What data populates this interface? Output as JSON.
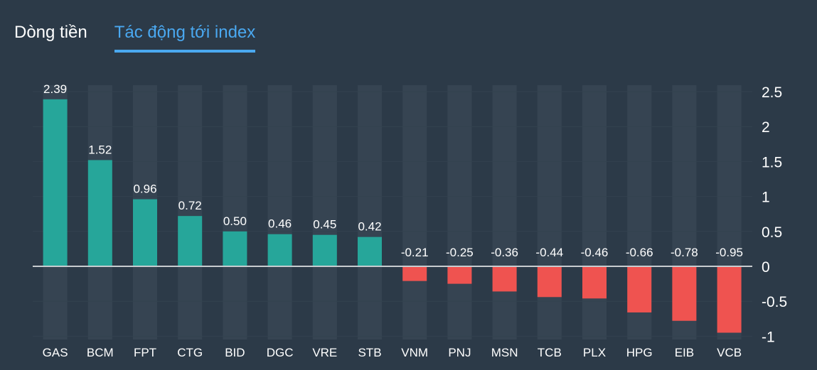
{
  "tabs": [
    {
      "label": "Dòng tiền",
      "active": false
    },
    {
      "label": "Tác động tới index",
      "active": true
    }
  ],
  "colors": {
    "background": "#2c3a48",
    "positive": "#26a69a",
    "negative": "#ef5350",
    "accent": "#4aa8f0",
    "column_band": "#364452",
    "zero_line": "#c8ccd0"
  },
  "chart_data": {
    "type": "bar",
    "categories": [
      "GAS",
      "BCM",
      "FPT",
      "CTG",
      "BID",
      "DGC",
      "VRE",
      "STB",
      "VNM",
      "PNJ",
      "MSN",
      "TCB",
      "PLX",
      "HPG",
      "EIB",
      "VCB"
    ],
    "values": [
      2.39,
      1.52,
      0.96,
      0.72,
      0.5,
      0.46,
      0.45,
      0.42,
      -0.21,
      -0.25,
      -0.36,
      -0.44,
      -0.46,
      -0.66,
      -0.78,
      -0.95
    ],
    "value_labels": [
      "2.39",
      "1.52",
      "0.96",
      "0.72",
      "0.50",
      "0.46",
      "0.45",
      "0.42",
      "-0.21",
      "-0.25",
      "-0.36",
      "-0.44",
      "-0.46",
      "-0.66",
      "-0.78",
      "-0.95"
    ],
    "y_ticks": [
      2.5,
      2,
      1.5,
      1,
      0.5,
      0,
      -0.5,
      -1
    ],
    "y_tick_labels": [
      "2.5",
      "2",
      "1.5",
      "1",
      "0.5",
      "0",
      "-0.5",
      "-1"
    ],
    "ylim": [
      -1,
      2.5
    ],
    "axis_side": "right",
    "title": "",
    "xlabel": "",
    "ylabel": ""
  }
}
